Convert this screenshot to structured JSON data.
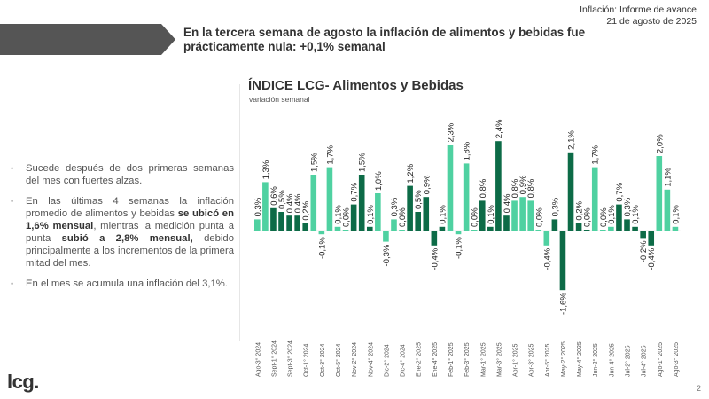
{
  "report": {
    "line1": "Inflación: Informe de avance",
    "line2": "21 de agosto de 2025"
  },
  "headline": {
    "line1": "En la tercera semana de agosto la inflación de alimentos y bebidas fue",
    "line2": "prácticamente nula: +0,1% semanal"
  },
  "bullets": [
    {
      "parts": [
        {
          "t": "Sucede después de dos primeras semanas del mes con fuertes alzas.",
          "b": false
        }
      ]
    },
    {
      "parts": [
        {
          "t": "En las últimas 4 semanas la inflación promedio de alimentos y bebidas ",
          "b": false
        },
        {
          "t": "se ubicó en 1,6% mensual",
          "b": true
        },
        {
          "t": ", mientras la medición punta a punta ",
          "b": false
        },
        {
          "t": "subió a 2,8% mensual,",
          "b": true
        },
        {
          "t": " debido principalmente a los incrementos de la primera mitad del mes.",
          "b": false
        }
      ]
    },
    {
      "parts": [
        {
          "t": "En el mes se acumula una inflación del 3,1%.",
          "b": false
        }
      ]
    }
  ],
  "bullet_glyph": "•",
  "colors": {
    "light": "#4fd1a1",
    "dark": "#0d6b47",
    "header_arrow": "#555555"
  },
  "logo": "lcg.",
  "page_number": "2",
  "chart_data": {
    "type": "bar",
    "title": "ÍNDICE LCG- Alimentos y Bebidas",
    "subtitle": "variación semanal",
    "xlabel": "",
    "ylabel": "",
    "ylim": [
      -1.6,
      2.4
    ],
    "grid": false,
    "legend": "none",
    "value_suffix": "%",
    "decimal_separator": ",",
    "tick_labels_every": 2,
    "categories": [
      "Ago-3° 2024",
      "Ago-4° 2024",
      "Sept-1° 2024",
      "Sept-2° 2024",
      "Sept-3° 2024",
      "Sept-4° 2024",
      "Oct-1° 2024",
      "Oct-2° 2024",
      "Oct-3° 2024",
      "Oct-4° 2024",
      "Oct-5° 2024",
      "Nov-1° 2024",
      "Nov-2° 2024",
      "Nov-3° 2024",
      "Nov-4° 2024",
      "Dic-1° 2024",
      "Dic-2° 2024",
      "Dic-3° 2024",
      "Dic-4° 2024",
      "Ene-1° 2025",
      "Ene-2° 2025",
      "Ene-3° 2025",
      "Ene-4° 2025",
      "Ene-5° 2025",
      "Feb-1° 2025",
      "Feb-2° 2025",
      "Feb-3° 2025",
      "Feb-4° 2025",
      "Mar-1° 2025",
      "Mar-2° 2025",
      "Mar-3° 2025",
      "Mar-4° 2025",
      "Abr-1° 2025",
      "Abr-2° 2025",
      "Abr-3° 2025",
      "Abr-4° 2025",
      "Abr-5° 2025",
      "May-1° 2025",
      "May-2° 2025",
      "May-3° 2025",
      "May-4° 2025",
      "Jun-1° 2025",
      "Jun-2° 2025",
      "Jun-3° 2025",
      "Jun-4° 2025",
      "Jul-1° 2025",
      "Jul-2° 2025",
      "Jul-3° 2025",
      "Jul-4° 2025",
      "Jul-5° 2025",
      "Ago-1° 2025",
      "Ago-2° 2025",
      "Ago-3° 2025"
    ],
    "values": [
      0.3,
      1.3,
      0.6,
      0.5,
      0.4,
      0.4,
      0.2,
      1.5,
      -0.1,
      1.7,
      0.1,
      0.0,
      0.7,
      1.5,
      0.1,
      1.0,
      -0.3,
      0.3,
      0.0,
      1.2,
      0.5,
      0.9,
      -0.4,
      0.1,
      2.3,
      -0.1,
      1.8,
      0.0,
      0.8,
      0.1,
      2.4,
      0.4,
      0.8,
      0.9,
      0.8,
      0.0,
      -0.4,
      0.3,
      -1.6,
      2.1,
      0.2,
      0.0,
      1.7,
      0.0,
      0.1,
      0.7,
      0.3,
      0.1,
      -0.2,
      -0.4,
      2.0,
      1.1,
      0.1
    ],
    "shade": [
      "light",
      "light",
      "dark",
      "dark",
      "dark",
      "dark",
      "dark",
      "light",
      "light",
      "light",
      "light",
      "light",
      "dark",
      "dark",
      "dark",
      "light",
      "light",
      "light",
      "light",
      "dark",
      "dark",
      "dark",
      "dark",
      "dark",
      "light",
      "light",
      "light",
      "light",
      "dark",
      "dark",
      "dark",
      "dark",
      "light",
      "light",
      "light",
      "light",
      "light",
      "dark",
      "dark",
      "dark",
      "dark",
      "dark",
      "light",
      "light",
      "light",
      "dark",
      "dark",
      "dark",
      "dark",
      "dark",
      "light",
      "light",
      "light"
    ]
  }
}
